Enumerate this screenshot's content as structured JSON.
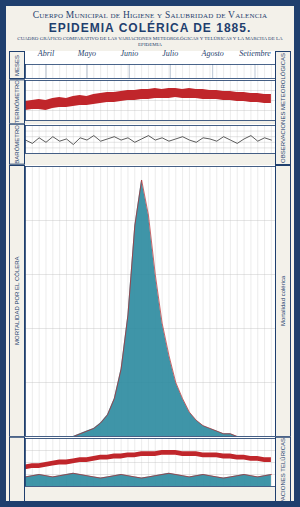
{
  "header": {
    "title": "Cuerpo Municipal de Higiene y Salubridad de Valencia",
    "subtitle": "EPIDEMIA COLÉRICA DE 1885.",
    "caption": "CUADRO GRÁFICO COMPARATIVO DE LAS VARIACIONES METEOROLÓGICAS Y TELÚRICAS Y LA MARCHA DE LA EPIDEMIA"
  },
  "chart_data": {
    "type": "panels",
    "x": [
      0,
      5,
      10,
      15,
      20,
      25,
      30,
      35,
      40,
      45,
      50,
      55,
      60,
      65,
      70,
      75,
      80,
      85,
      90,
      95,
      100,
      105,
      110,
      115,
      120,
      125,
      130,
      135,
      140,
      145,
      150,
      155,
      160,
      165,
      170,
      175,
      180
    ],
    "xlim": [
      0,
      183
    ],
    "xticks": [
      {
        "value": 15,
        "label": "Abril"
      },
      {
        "value": 45,
        "label": "Mayo"
      },
      {
        "value": 76,
        "label": "Junio"
      },
      {
        "value": 106,
        "label": "Julio"
      },
      {
        "value": 137,
        "label": "Agosto"
      },
      {
        "value": 168,
        "label": "Setiembre"
      }
    ],
    "panels": [
      {
        "type": "axis",
        "ylabel": "MESES",
        "side_label": "OBSERVACIONES METEOROLÓGICAS"
      },
      {
        "type": "band",
        "ylabel": "TERMÓMETRO",
        "ylim": [
          0,
          40
        ],
        "yticks": [
          0,
          10,
          20,
          30,
          40
        ],
        "grid": true,
        "tick_labels": false,
        "series": [
          {
            "type": "band",
            "color": "#c0262b",
            "high": [
              19,
              20,
              21,
              20,
              22,
              23,
              22,
              24,
              25,
              24,
              26,
              27,
              28,
              28,
              29,
              30,
              30,
              31,
              31,
              32,
              31,
              32,
              32,
              31,
              32,
              31,
              31,
              30,
              30,
              29,
              29,
              28,
              28,
              27,
              27,
              26,
              26
            ],
            "low": [
              10,
              11,
              11,
              10,
              12,
              13,
              13,
              14,
              15,
              15,
              16,
              17,
              18,
              18,
              19,
              20,
              20,
              21,
              21,
              22,
              22,
              22,
              23,
              22,
              22,
              22,
              21,
              21,
              21,
              20,
              20,
              19,
              19,
              18,
              18,
              17,
              17
            ]
          }
        ]
      },
      {
        "type": "line",
        "ylabel": "BARÓMETRO",
        "ylim": [
          750,
          775
        ],
        "yticks": [
          750,
          755,
          760,
          765,
          770,
          775
        ],
        "grid": true,
        "tick_labels": false,
        "series": [
          {
            "type": "line",
            "color": "#333333",
            "values": [
              762,
              759,
              764,
              760,
              765,
              761,
              763,
              758,
              764,
              762,
              766,
              761,
              763,
              765,
              762,
              764,
              760,
              763,
              766,
              762,
              764,
              761,
              763,
              765,
              762,
              760,
              764,
              763,
              761,
              765,
              762,
              759,
              763,
              766,
              761,
              764,
              762
            ]
          }
        ]
      },
      {
        "type": "area",
        "ylabel": "MORTALIDAD POR EL CÓLERA",
        "side_label": "Mortalidad colérica",
        "ylim": [
          0,
          100
        ],
        "yticks": [
          0,
          20,
          40,
          60,
          80,
          100
        ],
        "grid": true,
        "tick_labels": false,
        "series": [
          {
            "type": "area",
            "color": "#2a8a9e",
            "values": [
              0,
              0,
              0,
              0,
              0,
              0,
              0,
              0,
              1,
              2,
              3,
              5,
              8,
              14,
              25,
              45,
              78,
              95,
              82,
              60,
              42,
              30,
              20,
              14,
              9,
              6,
              4,
              3,
              2,
              1,
              1,
              0,
              0,
              0,
              0,
              0,
              0
            ]
          }
        ]
      },
      {
        "type": "band",
        "side_label": "OBSERVACIONES TELÚRICAS",
        "ylim": [
          0,
          40
        ],
        "yticks": [
          0,
          10,
          20,
          30,
          40
        ],
        "grid": true,
        "tick_labels": false,
        "series": [
          {
            "type": "band",
            "color": "#c0262b",
            "high": [
              18,
              19,
              19,
              20,
              21,
              22,
              22,
              23,
              24,
              24,
              25,
              26,
              26,
              27,
              27,
              28,
              28,
              29,
              29,
              29,
              30,
              30,
              30,
              29,
              29,
              29,
              28,
              28,
              28,
              27,
              27,
              26,
              26,
              25,
              25,
              24,
              24
            ],
            "low": [
              14,
              15,
              15,
              16,
              17,
              18,
              18,
              19,
              20,
              20,
              21,
              22,
              22,
              23,
              23,
              24,
              24,
              25,
              25,
              25,
              26,
              26,
              26,
              25,
              25,
              25,
              24,
              24,
              24,
              23,
              23,
              22,
              22,
              21,
              21,
              20,
              20
            ]
          },
          {
            "type": "area",
            "color": "#2a8a9e",
            "values": [
              8,
              9,
              10,
              9,
              8,
              9,
              10,
              11,
              10,
              9,
              8,
              7,
              8,
              9,
              10,
              9,
              8,
              7,
              8,
              9,
              10,
              11,
              10,
              9,
              8,
              9,
              10,
              9,
              8,
              7,
              8,
              9,
              10,
              9,
              8,
              9,
              10
            ]
          }
        ]
      }
    ]
  }
}
